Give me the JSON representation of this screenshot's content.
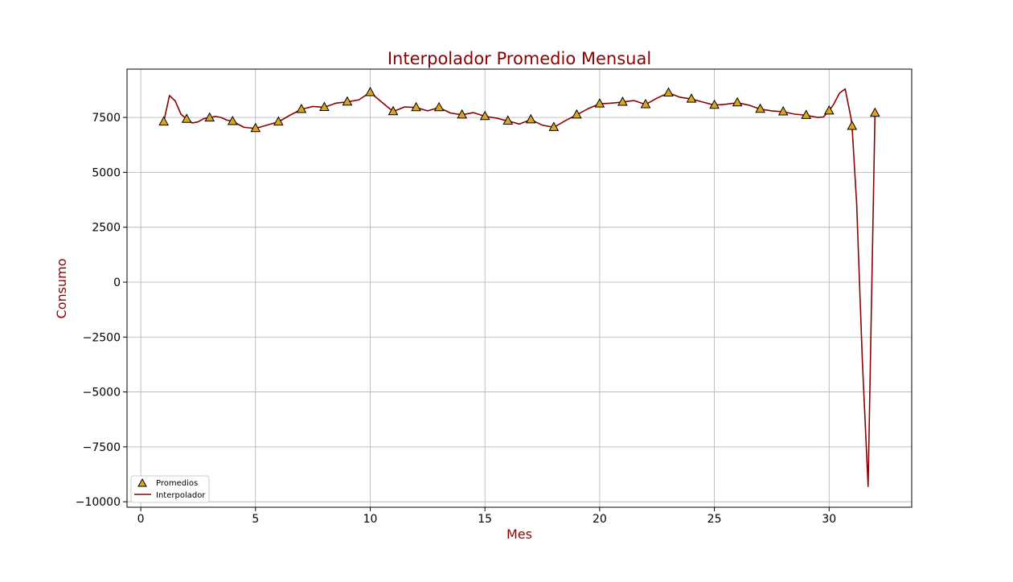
{
  "chart_data": {
    "type": "line",
    "title": "Interpolador Promedio Mensual",
    "xlabel": "Mes",
    "ylabel": "Consumo",
    "xlim": [
      -0.6,
      33.6
    ],
    "ylim": [
      -10250,
      9700
    ],
    "xticks": [
      0,
      5,
      10,
      15,
      20,
      25,
      30
    ],
    "yticks": [
      -10000,
      -7500,
      -5000,
      -2500,
      0,
      2500,
      5000,
      7500
    ],
    "ytick_labels": [
      "−10000",
      "−7500",
      "−5000",
      "−2500",
      "0",
      "2500",
      "5000",
      "7500"
    ],
    "xtick_labels": [
      "0",
      "5",
      "10",
      "15",
      "20",
      "25",
      "30"
    ],
    "grid": true,
    "legend_position": "lower-left",
    "colors": {
      "title": "#8b0000",
      "label": "#8b0000",
      "line": "#8b0000",
      "marker_fill": "#daa520",
      "marker_edge": "#000000",
      "grid": "#b0b0b0"
    },
    "series": [
      {
        "name": "Promedios",
        "kind": "scatter",
        "marker": "triangle",
        "x": [
          1,
          2,
          3,
          4,
          5,
          6,
          7,
          8,
          9,
          10,
          11,
          12,
          13,
          14,
          15,
          16,
          17,
          18,
          19,
          20,
          21,
          22,
          23,
          24,
          25,
          26,
          27,
          28,
          29,
          30,
          31,
          32
        ],
        "y": [
          7300,
          7420,
          7480,
          7320,
          7000,
          7300,
          7870,
          7960,
          8210,
          8640,
          7770,
          7950,
          7950,
          7620,
          7550,
          7340,
          7400,
          7050,
          7620,
          8120,
          8200,
          8090,
          8620,
          8340,
          8060,
          8170,
          7880,
          7760,
          7600,
          7800,
          7100,
          7700
        ]
      },
      {
        "name": "Interpolador",
        "kind": "line",
        "x": [
          1.0,
          1.25,
          1.5,
          1.75,
          2.0,
          2.25,
          2.5,
          2.75,
          3.0,
          3.25,
          3.5,
          3.75,
          4.0,
          4.5,
          5.0,
          5.5,
          6.0,
          6.5,
          7.0,
          7.5,
          8.0,
          8.5,
          9.0,
          9.5,
          10.0,
          10.5,
          11.0,
          11.5,
          12.0,
          12.5,
          13.0,
          13.5,
          14.0,
          14.5,
          15.0,
          15.5,
          16.0,
          16.5,
          17.0,
          17.5,
          18.0,
          18.5,
          19.0,
          19.5,
          20.0,
          20.5,
          21.0,
          21.5,
          22.0,
          22.5,
          23.0,
          23.5,
          24.0,
          24.5,
          25.0,
          25.5,
          26.0,
          26.5,
          27.0,
          27.5,
          28.0,
          28.5,
          29.0,
          29.25,
          29.5,
          29.75,
          30.0,
          30.2,
          30.45,
          30.7,
          30.95,
          31.0,
          31.2,
          31.45,
          31.7,
          32.0
        ],
        "y": [
          7300,
          8500,
          8250,
          7650,
          7420,
          7250,
          7300,
          7450,
          7480,
          7550,
          7500,
          7380,
          7320,
          7050,
          7000,
          7150,
          7300,
          7600,
          7870,
          8000,
          7960,
          8150,
          8210,
          8300,
          8640,
          8200,
          7770,
          7980,
          7950,
          7800,
          7950,
          7700,
          7620,
          7720,
          7550,
          7470,
          7340,
          7200,
          7400,
          7150,
          7050,
          7350,
          7620,
          7900,
          8120,
          8150,
          8200,
          8270,
          8090,
          8380,
          8620,
          8420,
          8340,
          8200,
          8060,
          8100,
          8170,
          8060,
          7880,
          7800,
          7760,
          7650,
          7600,
          7550,
          7500,
          7520,
          7800,
          8100,
          8600,
          8800,
          7500,
          7100,
          3600,
          -3600,
          -9300,
          7700
        ]
      }
    ]
  }
}
